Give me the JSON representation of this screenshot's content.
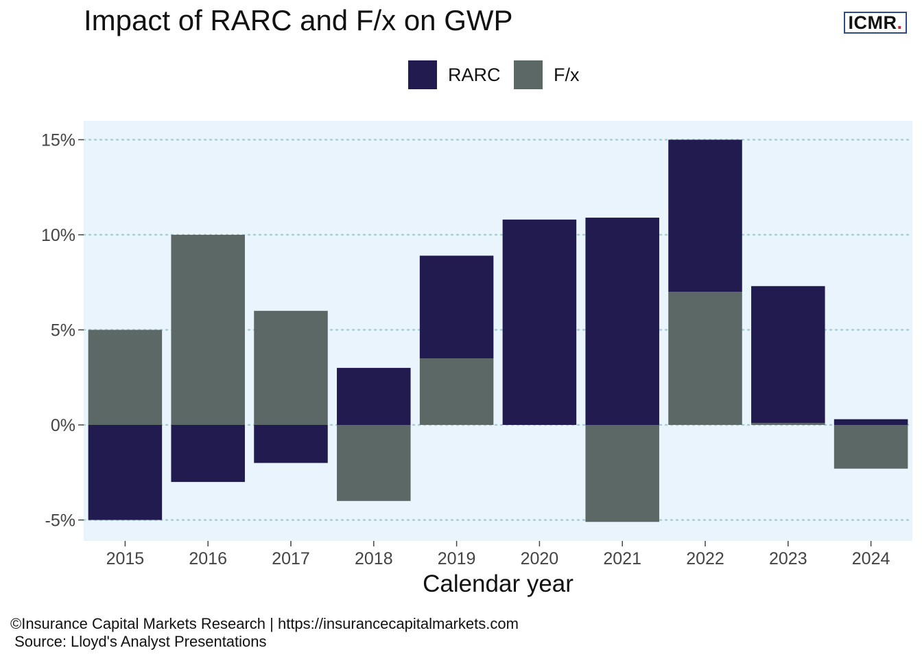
{
  "header": {
    "title": "Impact of RARC and F/x on GWP",
    "logo_text": "ICMR",
    "logo_dot": "."
  },
  "footer": {
    "line1": "©Insurance Capital Markets Research | https://insurancecapitalmarkets.com",
    "line2": " Source: Lloyd's Analyst Presentations"
  },
  "chart_data": {
    "type": "bar",
    "stacked": true,
    "title": "Impact of RARC and F/x on GWP",
    "xlabel": "Calendar year",
    "ylabel": "",
    "categories": [
      "2015",
      "2016",
      "2017",
      "2018",
      "2019",
      "2020",
      "2021",
      "2022",
      "2023",
      "2024"
    ],
    "series": [
      {
        "name": "RARC",
        "color": "#211b4f",
        "values": [
          -5.0,
          -3.0,
          -2.0,
          3.0,
          5.4,
          10.8,
          10.9,
          8.0,
          7.2,
          0.3
        ]
      },
      {
        "name": "F/x",
        "color": "#5c6866",
        "values": [
          5.0,
          10.0,
          6.0,
          -4.0,
          3.5,
          0.0,
          -5.1,
          7.0,
          0.1,
          -2.3
        ]
      }
    ],
    "stack_order": [
      "F/x",
      "RARC"
    ],
    "ylim": [
      -6,
      15.6
    ],
    "yticks": [
      -5,
      0,
      5,
      10,
      15
    ],
    "ytick_labels": [
      "-5%",
      "0%",
      "5%",
      "10%",
      "15%"
    ],
    "grid": "horizontal dotted",
    "legend_position": "top",
    "panel_color": "#eaf4fd",
    "grid_color": "#a8d0d4"
  }
}
